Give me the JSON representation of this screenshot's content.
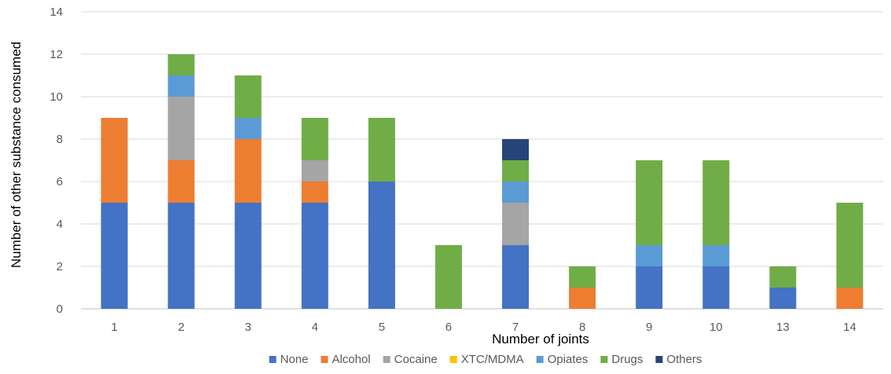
{
  "chart_data": {
    "type": "bar",
    "stacked": true,
    "xlabel": "Number of joints",
    "ylabel": "Number of other substance consumed",
    "ylim": [
      0,
      14
    ],
    "yticks": [
      0,
      2,
      4,
      6,
      8,
      10,
      12,
      14
    ],
    "grid": true,
    "legend_position": "bottom",
    "categories": [
      "1",
      "2",
      "3",
      "4",
      "5",
      "6",
      "7",
      "8",
      "9",
      "10",
      "13",
      "14"
    ],
    "series": [
      {
        "name": "None",
        "color": "#4472C4",
        "values": [
          5,
          5,
          5,
          5,
          6,
          0,
          3,
          0,
          2,
          2,
          1,
          0
        ]
      },
      {
        "name": "Alcohol",
        "color": "#ED7D31",
        "values": [
          4,
          2,
          3,
          1,
          0,
          0,
          0,
          1,
          0,
          0,
          0,
          1
        ]
      },
      {
        "name": "Cocaine",
        "color": "#A5A5A5",
        "values": [
          0,
          3,
          0,
          1,
          0,
          0,
          2,
          0,
          0,
          0,
          0,
          0
        ]
      },
      {
        "name": "XTC/MDMA",
        "color": "#FFC000",
        "values": [
          0,
          0,
          0,
          0,
          0,
          0,
          0,
          0,
          0,
          0,
          0,
          0
        ]
      },
      {
        "name": "Opiates",
        "color": "#5B9BD5",
        "values": [
          0,
          1,
          1,
          0,
          0,
          0,
          1,
          0,
          1,
          1,
          0,
          0
        ]
      },
      {
        "name": "Drugs",
        "color": "#70AD47",
        "values": [
          0,
          1,
          2,
          2,
          3,
          3,
          1,
          1,
          4,
          4,
          1,
          4
        ]
      },
      {
        "name": "Others",
        "color": "#264478",
        "values": [
          0,
          0,
          0,
          0,
          0,
          0,
          1,
          0,
          0,
          0,
          0,
          0
        ]
      }
    ]
  }
}
